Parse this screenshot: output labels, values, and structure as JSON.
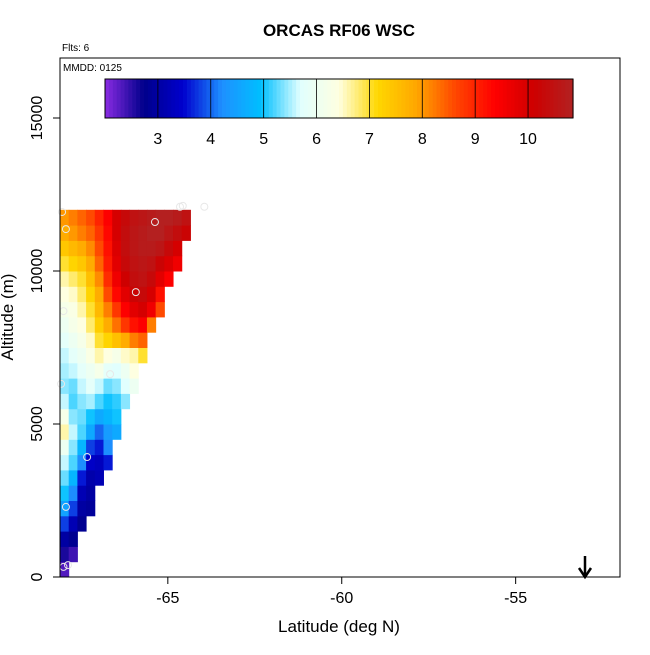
{
  "chart_data": {
    "type": "heatmap",
    "title": "ORCAS RF06 WSC",
    "subtitle": "Flts: 6",
    "annotation": "MMDD: 0125",
    "x_label": "Latitude (deg N)",
    "y_label": "Altitude (m)",
    "xlim": [
      -68.1,
      -52.0
    ],
    "xticks": [
      -65,
      -60,
      -55
    ],
    "ylim": [
      0,
      16961
    ],
    "yticks": [
      0,
      5000,
      10000,
      15000
    ],
    "clim": [
      2,
      10.85
    ],
    "cticks": [
      3,
      4,
      5,
      6,
      7,
      8,
      9,
      10
    ],
    "colors": [
      "#8a2be2",
      "#00008b",
      "#0000cd",
      "#1e90ff",
      "#00bfff",
      "#e0ffff",
      "#ffffe0",
      "#ffd700",
      "#ffa500",
      "#ff4500",
      "#ff0000",
      "#cd0000",
      "#b22222"
    ],
    "x": [
      -68.1,
      -67.85,
      -67.6,
      -67.35,
      -67.1,
      -66.85,
      -66.6,
      -66.35,
      -66.1,
      -65.85,
      -65.6,
      -65.35,
      -65.1,
      -64.85,
      -64.6,
      -64.35
    ],
    "y": [
      0,
      500,
      1000,
      1500,
      2000,
      2500,
      3000,
      3500,
      4000,
      4500,
      5000,
      5500,
      6000,
      6500,
      7000,
      7500,
      8000,
      8500,
      9000,
      9500,
      10000,
      10500,
      11000,
      11500
    ],
    "z": [
      [
        2.3,
        null,
        null,
        null,
        null,
        null,
        null,
        null,
        null,
        null,
        null,
        null,
        null,
        null,
        null,
        null
      ],
      [
        2.6,
        2.4,
        null,
        null,
        null,
        null,
        null,
        null,
        null,
        null,
        null,
        null,
        null,
        null,
        null,
        null
      ],
      [
        3.0,
        2.8,
        null,
        null,
        null,
        null,
        null,
        null,
        null,
        null,
        null,
        null,
        null,
        null,
        null,
        null
      ],
      [
        3.8,
        3.2,
        2.8,
        null,
        null,
        null,
        null,
        null,
        null,
        null,
        null,
        null,
        null,
        null,
        null,
        null
      ],
      [
        4.5,
        3.8,
        3.0,
        2.9,
        null,
        null,
        null,
        null,
        null,
        null,
        null,
        null,
        null,
        null,
        null,
        null
      ],
      [
        5.0,
        4.2,
        3.2,
        3.0,
        null,
        null,
        null,
        null,
        null,
        null,
        null,
        null,
        null,
        null,
        null,
        null
      ],
      [
        5.3,
        4.8,
        3.6,
        3.1,
        3.2,
        null,
        null,
        null,
        null,
        null,
        null,
        null,
        null,
        null,
        null,
        null
      ],
      [
        5.6,
        5.2,
        4.2,
        3.4,
        3.3,
        3.6,
        null,
        null,
        null,
        null,
        null,
        null,
        null,
        null,
        null,
        null
      ],
      [
        6.0,
        5.4,
        4.8,
        3.8,
        3.6,
        4.2,
        null,
        null,
        null,
        null,
        null,
        null,
        null,
        null,
        null,
        null
      ],
      [
        6.6,
        5.6,
        5.2,
        4.6,
        4.0,
        4.4,
        4.6,
        null,
        null,
        null,
        null,
        null,
        null,
        null,
        null,
        null
      ],
      [
        6.2,
        5.4,
        5.3,
        5.0,
        4.6,
        4.8,
        5.0,
        null,
        null,
        null,
        null,
        null,
        null,
        null,
        null,
        null
      ],
      [
        5.6,
        5.2,
        5.4,
        5.5,
        5.2,
        5.0,
        5.1,
        5.4,
        null,
        null,
        null,
        null,
        null,
        null,
        null,
        null
      ],
      [
        5.4,
        5.3,
        5.6,
        5.8,
        5.6,
        5.3,
        5.4,
        5.7,
        6.0,
        null,
        null,
        null,
        null,
        null,
        null,
        null
      ],
      [
        5.5,
        5.6,
        5.8,
        6.0,
        6.2,
        5.8,
        5.7,
        6.0,
        6.4,
        null,
        null,
        null,
        null,
        null,
        null,
        null
      ],
      [
        5.6,
        5.8,
        6.0,
        6.3,
        6.6,
        6.4,
        6.2,
        6.5,
        6.6,
        7.0,
        null,
        null,
        null,
        null,
        null,
        null
      ],
      [
        5.8,
        6.0,
        6.2,
        6.5,
        7.0,
        7.2,
        7.5,
        7.8,
        8.2,
        8.4,
        null,
        null,
        null,
        null,
        null,
        null
      ],
      [
        6.0,
        6.2,
        6.4,
        6.8,
        7.3,
        7.8,
        8.3,
        8.8,
        9.2,
        9.4,
        8.2,
        null,
        null,
        null,
        null,
        null
      ],
      [
        6.2,
        6.3,
        6.6,
        7.0,
        7.6,
        8.2,
        8.8,
        9.4,
        9.8,
        10.0,
        9.6,
        8.6,
        null,
        null,
        null,
        null
      ],
      [
        6.4,
        6.5,
        6.8,
        7.2,
        7.8,
        8.6,
        9.3,
        9.8,
        10.2,
        10.3,
        10.0,
        9.2,
        null,
        null,
        null,
        null
      ],
      [
        6.6,
        6.8,
        7.0,
        7.5,
        8.1,
        8.9,
        9.6,
        10.1,
        10.4,
        10.5,
        10.3,
        9.8,
        9.4,
        null,
        null,
        null
      ],
      [
        7.0,
        7.2,
        7.4,
        7.8,
        8.4,
        9.1,
        9.8,
        10.3,
        10.5,
        10.6,
        10.5,
        10.2,
        9.9,
        9.6,
        null,
        null
      ],
      [
        7.4,
        7.6,
        7.8,
        8.1,
        8.6,
        9.2,
        9.9,
        10.4,
        10.6,
        10.7,
        10.7,
        10.6,
        10.3,
        10.0,
        null,
        null
      ],
      [
        7.8,
        8.0,
        8.2,
        8.4,
        8.8,
        9.3,
        10.0,
        10.4,
        10.6,
        10.7,
        10.8,
        10.8,
        10.6,
        10.4,
        10.2,
        null
      ],
      [
        8.0,
        8.2,
        8.4,
        8.6,
        9.0,
        9.4,
        10.0,
        10.3,
        10.5,
        10.6,
        10.7,
        10.8,
        10.8,
        10.7,
        10.5,
        null
      ]
    ],
    "points": {
      "color": "#e8e8e8",
      "x": [
        -68.0,
        -67.87,
        -68.04,
        -67.93,
        -65.37,
        -64.65,
        -64.57,
        -63.95,
        -65.92,
        -68.0,
        -68.07,
        -66.66,
        -67.32,
        -67.93
      ],
      "y": [
        330,
        390,
        11930,
        11370,
        11600,
        12100,
        12130,
        12100,
        9310,
        8690,
        6310,
        6630,
        3920,
        2290
      ]
    }
  }
}
